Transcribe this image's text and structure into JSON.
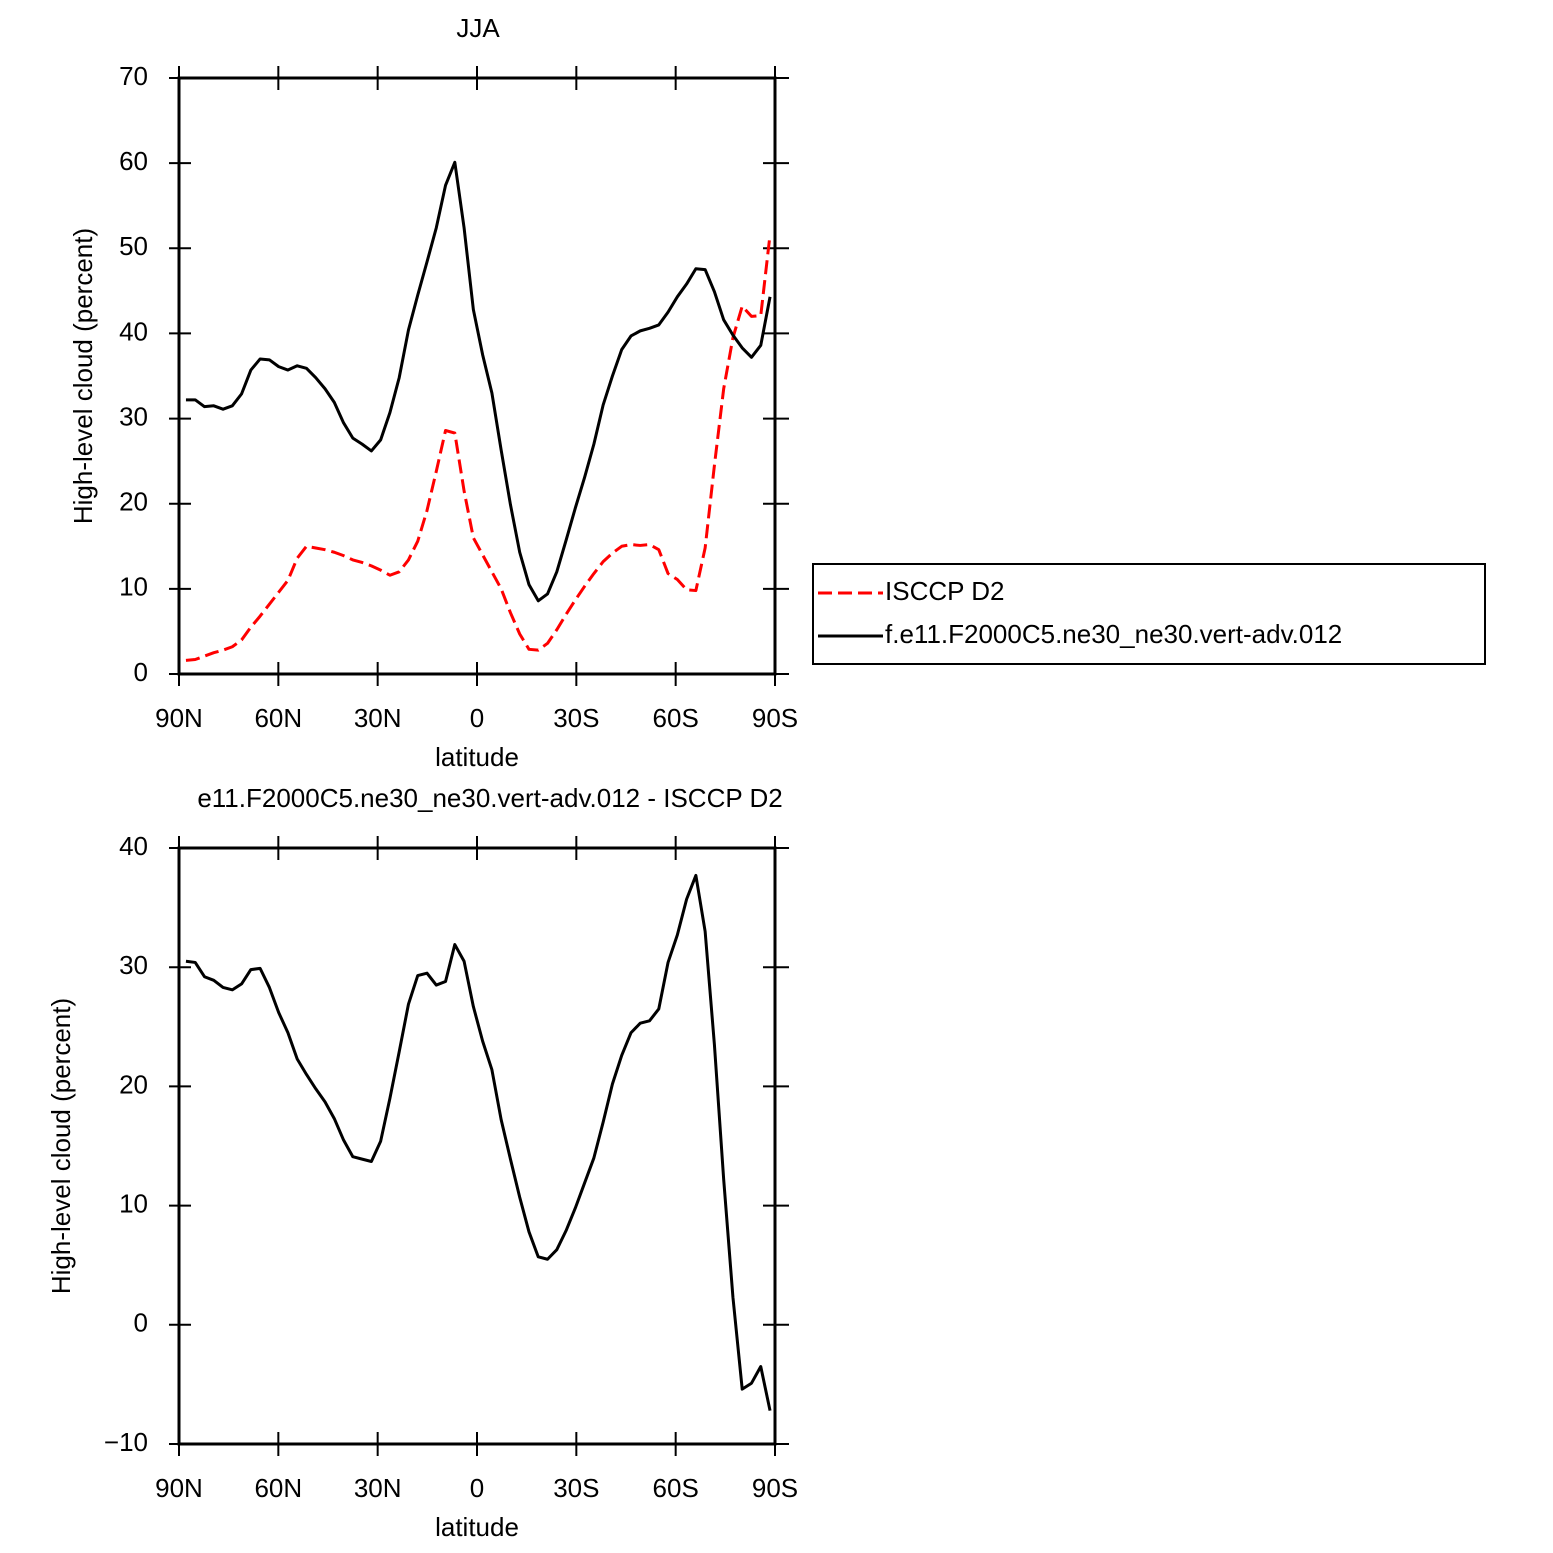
{
  "chart_data": [
    {
      "type": "line",
      "title": "JJA",
      "xlabel": "latitude",
      "ylabel": "High-level cloud (percent)",
      "x": [
        87.9,
        85.1,
        82.3,
        79.5,
        76.7,
        73.9,
        71.1,
        68.3,
        65.5,
        62.7,
        59.9,
        57.1,
        54.3,
        51.5,
        48.7,
        45.9,
        43.1,
        40.3,
        37.5,
        34.7,
        31.9,
        29.1,
        26.3,
        23.5,
        20.7,
        17.9,
        15.1,
        12.3,
        9.5,
        6.7,
        3.9,
        1.1,
        -1.7,
        -4.5,
        -7.3,
        -10.1,
        -12.9,
        -15.7,
        -18.5,
        -21.3,
        -24.1,
        -26.9,
        -29.7,
        -32.5,
        -35.3,
        -38.1,
        -40.9,
        -43.7,
        -46.5,
        -49.3,
        -52.1,
        -54.9,
        -57.7,
        -60.5,
        -63.3,
        -66.1,
        -68.9,
        -71.7,
        -74.5,
        -77.3,
        -80.1,
        -82.9,
        -85.7,
        -88.5
      ],
      "series": [
        {
          "name": "ISCCP D2",
          "color": "#ff0000",
          "dash": true,
          "values": [
            1.6,
            1.7,
            2.1,
            2.5,
            2.8,
            3.2,
            4.0,
            5.5,
            6.8,
            8.2,
            9.6,
            11.0,
            13.6,
            15.0,
            14.8,
            14.6,
            14.3,
            13.9,
            13.4,
            13.1,
            12.7,
            12.2,
            11.6,
            12.0,
            13.4,
            15.6,
            19.2,
            23.8,
            28.6,
            28.3,
            21.5,
            16.0,
            14.0,
            12.0,
            10.0,
            7.2,
            4.7,
            2.9,
            2.8,
            3.6,
            5.2,
            7.0,
            8.7,
            10.3,
            11.8,
            13.2,
            14.2,
            15.0,
            15.2,
            15.1,
            15.2,
            14.6,
            11.8,
            11.1,
            9.9,
            9.8,
            14.8,
            24.5,
            33.5,
            39.5,
            43.2,
            42.0,
            42.1,
            51.6
          ]
        },
        {
          "name": "f.e11.F2000C5.ne30_ne30.vert-adv.012",
          "color": "#000000",
          "dash": false,
          "values": [
            32.2,
            32.2,
            31.4,
            31.5,
            31.1,
            31.5,
            32.9,
            35.7,
            37.0,
            36.9,
            36.1,
            35.7,
            36.2,
            35.9,
            34.8,
            33.5,
            31.9,
            29.5,
            27.7,
            27.0,
            26.2,
            27.5,
            30.7,
            34.8,
            40.4,
            44.5,
            48.4,
            52.4,
            57.4,
            60.1,
            52.4,
            42.8,
            37.5,
            33.0,
            26.3,
            19.9,
            14.3,
            10.5,
            8.6,
            9.4,
            12.0,
            15.7,
            19.5,
            23.1,
            27.0,
            31.6,
            35.0,
            38.1,
            39.7,
            40.3,
            40.6,
            41.0,
            42.5,
            44.3,
            45.8,
            47.6,
            47.5,
            44.9,
            41.6,
            39.8,
            38.3,
            37.2,
            38.6,
            44.3
          ]
        }
      ],
      "xlim": [
        90,
        -90
      ],
      "ylim": [
        0,
        70
      ],
      "xticks": [
        {
          "value": 90,
          "label": "90N"
        },
        {
          "value": 60,
          "label": "60N"
        },
        {
          "value": 30,
          "label": "30N"
        },
        0,
        {
          "value": -30,
          "label": "30S"
        },
        {
          "value": -60,
          "label": "60S"
        },
        {
          "value": -90,
          "label": "90S"
        }
      ],
      "yticks": [
        0,
        10,
        20,
        30,
        40,
        50,
        60,
        70
      ],
      "legend": "right"
    },
    {
      "type": "line",
      "title": "e11.F2000C5.ne30_ne30.vert-adv.012 - ISCCP D2",
      "xlabel": "latitude",
      "ylabel": "High-level cloud (percent)",
      "x": [
        87.9,
        85.1,
        82.3,
        79.5,
        76.7,
        73.9,
        71.1,
        68.3,
        65.5,
        62.7,
        59.9,
        57.1,
        54.3,
        51.5,
        48.7,
        45.9,
        43.1,
        40.3,
        37.5,
        34.7,
        31.9,
        29.1,
        26.3,
        23.5,
        20.7,
        17.9,
        15.1,
        12.3,
        9.5,
        6.7,
        3.9,
        1.1,
        -1.7,
        -4.5,
        -7.3,
        -10.1,
        -12.9,
        -15.7,
        -18.5,
        -21.3,
        -24.1,
        -26.9,
        -29.7,
        -32.5,
        -35.3,
        -38.1,
        -40.9,
        -43.7,
        -46.5,
        -49.3,
        -52.1,
        -54.9,
        -57.7,
        -60.5,
        -63.3,
        -66.1,
        -68.9,
        -71.7,
        -74.5,
        -77.3,
        -80.1,
        -82.9,
        -85.7,
        -88.5
      ],
      "series": [
        {
          "color": "#000000",
          "dash": false,
          "values": [
            30.5,
            30.4,
            29.2,
            28.9,
            28.3,
            28.1,
            28.6,
            29.8,
            29.9,
            28.3,
            26.2,
            24.5,
            22.3,
            21.0,
            19.8,
            18.7,
            17.3,
            15.5,
            14.1,
            13.9,
            13.7,
            15.4,
            19.0,
            22.9,
            26.9,
            29.3,
            29.5,
            28.5,
            28.8,
            31.9,
            30.5,
            26.7,
            23.8,
            21.4,
            17.2,
            13.9,
            10.7,
            7.8,
            5.7,
            5.5,
            6.3,
            7.9,
            9.8,
            11.9,
            14.0,
            17.0,
            20.2,
            22.6,
            24.5,
            25.3,
            25.5,
            26.5,
            30.4,
            32.7,
            35.7,
            37.7,
            33.0,
            23.5,
            12.2,
            2.3,
            -5.4,
            -4.9,
            -3.5,
            -7.2
          ]
        }
      ],
      "xlim": [
        90,
        -90
      ],
      "ylim": [
        -10,
        40
      ],
      "xticks": [
        {
          "value": 90,
          "label": "90N"
        },
        {
          "value": 60,
          "label": "60N"
        },
        {
          "value": 30,
          "label": "30N"
        },
        0,
        {
          "value": -30,
          "label": "30S"
        },
        {
          "value": -60,
          "label": "60S"
        },
        {
          "value": -90,
          "label": "90S"
        }
      ],
      "yticks": [
        {
          "value": -10,
          "label": "−10"
        },
        0,
        10,
        20,
        30,
        40
      ]
    }
  ]
}
